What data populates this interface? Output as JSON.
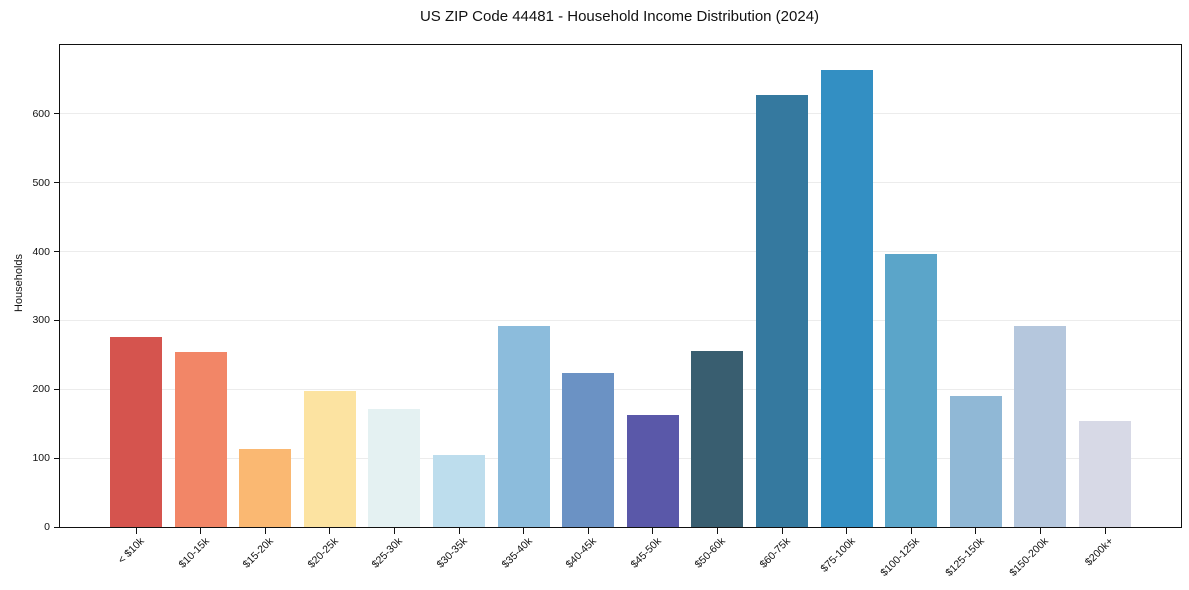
{
  "chart_data": {
    "type": "bar",
    "title": "US ZIP Code 44481 - Household Income Distribution (2024)",
    "xlabel": "",
    "ylabel": "Households",
    "categories": [
      "< $10k",
      "$10-15k",
      "$15-20k",
      "$20-25k",
      "$25-30k",
      "$30-35k",
      "$35-40k",
      "$40-45k",
      "$45-50k",
      "$50-60k",
      "$60-75k",
      "$75-100k",
      "$100-125k",
      "$125-150k",
      "$150-200k",
      "$200k+"
    ],
    "values": [
      276,
      254,
      113,
      197,
      172,
      104,
      292,
      224,
      163,
      256,
      628,
      663,
      397,
      190,
      292,
      154
    ],
    "bar_colors": [
      "#d5544e",
      "#f28667",
      "#fab872",
      "#fce3a1",
      "#e4f1f2",
      "#bddded",
      "#8cbcdc",
      "#6b92c4",
      "#5a58a9",
      "#395e70",
      "#35799f",
      "#338fc3",
      "#5ba5c9",
      "#90b8d6",
      "#b5c7dd",
      "#d7d9e6"
    ],
    "ylim": [
      0,
      700
    ],
    "yticks": [
      0,
      100,
      200,
      300,
      400,
      500,
      600
    ],
    "grid": "horizontal gridlines on y ticks (except 0)",
    "legend": null
  },
  "style": {
    "background_color": "#ffffff",
    "spine_color": "#111111",
    "grid_color": "#ececec",
    "text_color": "#111111"
  }
}
